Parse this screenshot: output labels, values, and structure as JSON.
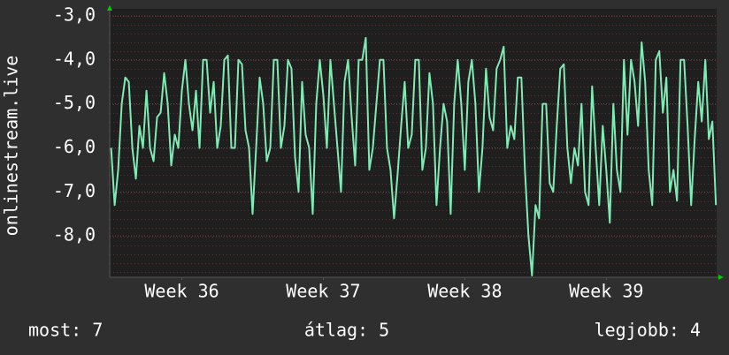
{
  "chart_data": {
    "type": "line",
    "y_label": "onlinestream.live",
    "x": [
      35.5,
      35.525,
      35.55,
      35.575,
      35.6,
      35.625,
      35.65,
      35.675,
      35.7,
      35.725,
      35.75,
      35.775,
      35.8,
      35.825,
      35.85,
      35.875,
      35.9,
      35.925,
      35.95,
      35.975,
      36.0,
      36.025,
      36.05,
      36.075,
      36.1,
      36.125,
      36.15,
      36.175,
      36.2,
      36.225,
      36.25,
      36.275,
      36.3,
      36.325,
      36.35,
      36.375,
      36.4,
      36.425,
      36.45,
      36.475,
      36.5,
      36.525,
      36.55,
      36.575,
      36.6,
      36.625,
      36.65,
      36.675,
      36.7,
      36.725,
      36.75,
      36.775,
      36.8,
      36.825,
      36.85,
      36.875,
      36.9,
      36.925,
      36.95,
      36.975,
      37.0,
      37.025,
      37.05,
      37.075,
      37.1,
      37.125,
      37.15,
      37.175,
      37.2,
      37.225,
      37.25,
      37.275,
      37.3,
      37.325,
      37.35,
      37.375,
      37.4,
      37.425,
      37.45,
      37.475,
      37.5,
      37.525,
      37.55,
      37.575,
      37.6,
      37.625,
      37.65,
      37.675,
      37.7,
      37.725,
      37.75,
      37.775,
      37.8,
      37.825,
      37.85,
      37.875,
      37.9,
      37.925,
      37.95,
      37.975,
      38.0,
      38.025,
      38.05,
      38.075,
      38.1,
      38.125,
      38.15,
      38.175,
      38.2,
      38.225,
      38.25,
      38.275,
      38.3,
      38.325,
      38.35,
      38.375,
      38.4,
      38.425,
      38.45,
      38.475,
      38.5,
      38.525,
      38.55,
      38.575,
      38.6,
      38.625,
      38.65,
      38.675,
      38.7,
      38.725,
      38.75,
      38.775,
      38.8,
      38.825,
      38.85,
      38.875,
      38.9,
      38.925,
      38.95,
      38.975,
      39.0,
      39.025,
      39.05,
      39.075,
      39.1,
      39.125,
      39.15,
      39.175,
      39.2,
      39.225,
      39.25,
      39.275,
      39.3,
      39.325,
      39.35,
      39.375,
      39.4,
      39.425,
      39.45,
      39.475,
      39.5,
      39.525,
      39.55,
      39.575,
      39.6,
      39.625,
      39.65,
      39.675,
      39.7,
      39.725,
      39.75,
      39.775
    ],
    "series": [
      {
        "color": "#80eab4",
        "values": [
          -6,
          -7.3,
          -6.5,
          -5,
          -4.4,
          -4.5,
          -6,
          -6.7,
          -5.5,
          -6,
          -4.7,
          -6,
          -6.3,
          -5.3,
          -5.2,
          -4.3,
          -5,
          -6.4,
          -5.7,
          -6,
          -4.7,
          -4,
          -5,
          -5.6,
          -4.7,
          -6,
          -4,
          -4,
          -5.2,
          -4.5,
          -6,
          -5.5,
          -4,
          -3.9,
          -6,
          -6,
          -4,
          -4.1,
          -5.6,
          -6,
          -7.5,
          -6,
          -4.4,
          -5,
          -6.3,
          -6,
          -4,
          -4,
          -6,
          -5.5,
          -4,
          -4.2,
          -6.2,
          -7,
          -4.5,
          -5.7,
          -6,
          -7.5,
          -5,
          -4,
          -4.8,
          -6,
          -4,
          -5,
          -6,
          -7,
          -4.5,
          -4,
          -5.3,
          -6.4,
          -4,
          -4,
          -3.5,
          -6.5,
          -6,
          -5,
          -4,
          -4,
          -6,
          -6.5,
          -7.6,
          -6.6,
          -5.5,
          -4.5,
          -6,
          -5.7,
          -4,
          -4,
          -6.5,
          -6,
          -4.3,
          -5,
          -7.3,
          -6,
          -5,
          -5.4,
          -7.5,
          -5,
          -4,
          -5,
          -6.5,
          -4.5,
          -4,
          -5,
          -7,
          -6,
          -4.2,
          -5.3,
          -5.6,
          -4.2,
          -4,
          -3.7,
          -6,
          -5.5,
          -5.8,
          -4.4,
          -4.4,
          -6.5,
          -8,
          -8.9,
          -7.3,
          -7.6,
          -5,
          -5,
          -6.8,
          -7,
          -5.5,
          -4.2,
          -4.1,
          -6,
          -6.8,
          -6,
          -6.4,
          -5,
          -7,
          -7.3,
          -4.6,
          -6,
          -7.3,
          -5.5,
          -6.5,
          -7.7,
          -5,
          -6.5,
          -7,
          -4,
          -5.7,
          -4,
          -4.5,
          -5.5,
          -3.6,
          -4.5,
          -6.5,
          -7.3,
          -4,
          -3.8,
          -5.2,
          -4.4,
          -7,
          -6.5,
          -7.2,
          -4,
          -4,
          -5.5,
          -7.3,
          -5.8,
          -4.5,
          -5.4,
          -4,
          -5.8,
          -5.4,
          -7.3
        ]
      }
    ],
    "xlim": [
      35.49,
      39.78
    ],
    "xticks": [
      {
        "value": 36,
        "label": "Week 36"
      },
      {
        "value": 37,
        "label": "Week 37"
      },
      {
        "value": 38,
        "label": "Week 38"
      },
      {
        "value": 39,
        "label": "Week 39"
      }
    ],
    "ylim": [
      -8.94,
      -2.84
    ],
    "yticks": [
      {
        "value": -3,
        "label": "-3,0"
      },
      {
        "value": -4,
        "label": "-4,0"
      },
      {
        "value": -5,
        "label": "-5,0"
      },
      {
        "value": -6,
        "label": "-6,0"
      },
      {
        "value": -7,
        "label": "-7,0"
      },
      {
        "value": -8,
        "label": "-8,0"
      }
    ],
    "grid": true,
    "footer": [
      "most: 7",
      "átlag: 5",
      "legjobb: 4"
    ]
  }
}
